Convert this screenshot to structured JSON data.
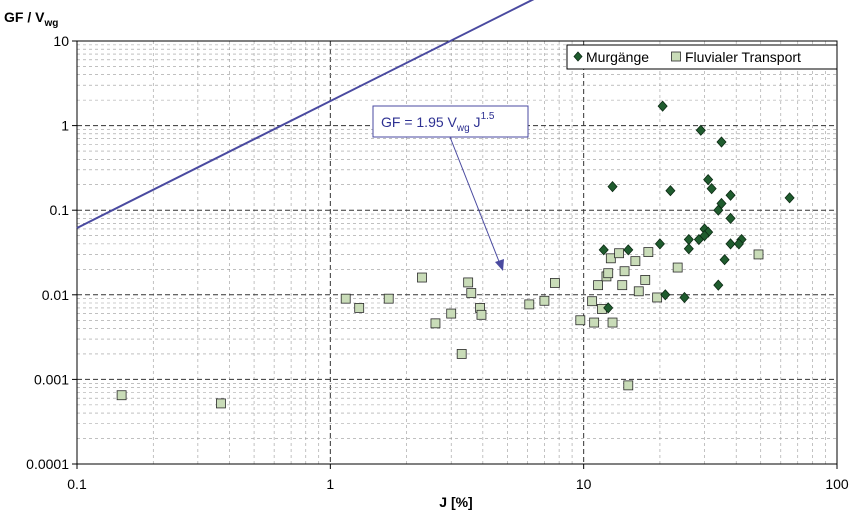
{
  "chart_data": {
    "type": "scatter",
    "x_scale": "log",
    "y_scale": "log",
    "xlim": [
      0.1,
      100
    ],
    "ylim": [
      0.0001,
      10
    ],
    "ylabel": {
      "main": "GF / V",
      "sub": "wg"
    },
    "xlabel": "J [%]",
    "x_ticks": [
      "0.1",
      "1",
      "10",
      "100"
    ],
    "y_ticks": [
      "0.0001",
      "0.001",
      "0.01",
      "0.1",
      "1",
      "10"
    ],
    "grid": true,
    "legend_position": "top-right",
    "colors": {
      "murgaenge": "#1f5c2e",
      "fluvial_fill": "#c9dcb8",
      "fluvial_edge": "#2b2b2b",
      "trend": "#4a4aa0",
      "grid": "#9a9a9a"
    },
    "series": [
      {
        "name": "Murgänge",
        "marker": "diamond",
        "points": [
          [
            20.5,
            1.7
          ],
          [
            29,
            0.88
          ],
          [
            35,
            0.64
          ],
          [
            13,
            0.19
          ],
          [
            22,
            0.17
          ],
          [
            31,
            0.23
          ],
          [
            32,
            0.18
          ],
          [
            38,
            0.15
          ],
          [
            35,
            0.12
          ],
          [
            34,
            0.1
          ],
          [
            38,
            0.08
          ],
          [
            65,
            0.14
          ],
          [
            30,
            0.06
          ],
          [
            31,
            0.055
          ],
          [
            28.5,
            0.045
          ],
          [
            26,
            0.045
          ],
          [
            30,
            0.05
          ],
          [
            42,
            0.045
          ],
          [
            38,
            0.04
          ],
          [
            41,
            0.04
          ],
          [
            20,
            0.04
          ],
          [
            12,
            0.034
          ],
          [
            15,
            0.034
          ],
          [
            26,
            0.035
          ],
          [
            36,
            0.026
          ],
          [
            21,
            0.01
          ],
          [
            25,
            0.0093
          ],
          [
            34,
            0.013
          ],
          [
            12.5,
            0.007
          ]
        ]
      },
      {
        "name": "Fluvialer Transport",
        "marker": "square",
        "points": [
          [
            0.15,
            0.00065
          ],
          [
            0.37,
            0.00052
          ],
          [
            1.15,
            0.009
          ],
          [
            1.3,
            0.007
          ],
          [
            1.7,
            0.009
          ],
          [
            2.3,
            0.016
          ],
          [
            2.6,
            0.0046
          ],
          [
            3.0,
            0.006
          ],
          [
            3.3,
            0.002
          ],
          [
            3.5,
            0.014
          ],
          [
            3.6,
            0.0105
          ],
          [
            3.9,
            0.007
          ],
          [
            3.95,
            0.0058
          ],
          [
            6.1,
            0.0077
          ],
          [
            7.0,
            0.0085
          ],
          [
            7.7,
            0.0138
          ],
          [
            9.7,
            0.005
          ],
          [
            10.8,
            0.0084
          ],
          [
            11.0,
            0.0047
          ],
          [
            11.4,
            0.013
          ],
          [
            11.8,
            0.0068
          ],
          [
            12.3,
            0.0165
          ],
          [
            12.5,
            0.018
          ],
          [
            12.8,
            0.027
          ],
          [
            13.0,
            0.0047
          ],
          [
            13.8,
            0.031
          ],
          [
            14.2,
            0.013
          ],
          [
            14.5,
            0.019
          ],
          [
            15.0,
            0.00085
          ],
          [
            16.0,
            0.025
          ],
          [
            16.5,
            0.011
          ],
          [
            17.5,
            0.015
          ],
          [
            18.0,
            0.032
          ],
          [
            19.5,
            0.0093
          ],
          [
            23.5,
            0.021
          ],
          [
            49.0,
            0.03
          ]
        ]
      }
    ],
    "trendline": {
      "coefficient": 1.95,
      "exponent": 1.5
    },
    "annotation": {
      "text_main": "GF = 1.95 V",
      "text_sub": "wg",
      "text_mid": " J",
      "text_sup": "1.5"
    }
  }
}
